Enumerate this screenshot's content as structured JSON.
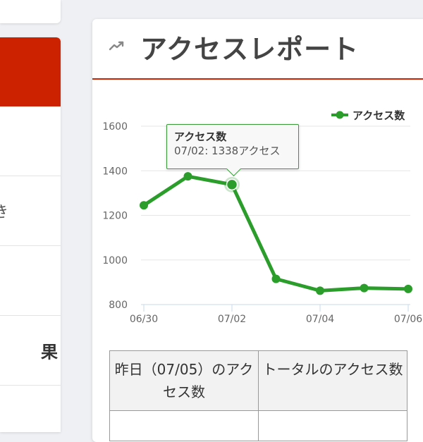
{
  "left_menu": {
    "items": [
      {
        "label": ""
      },
      {
        "label": "",
        "glyph": "き"
      },
      {
        "label": ""
      },
      {
        "label": "果"
      },
      {
        "label": ""
      }
    ]
  },
  "report": {
    "title": "アクセスレポート",
    "icon": "line-chart-icon"
  },
  "tooltip": {
    "title": "アクセス数",
    "body": "07/02: 1338アクセス"
  },
  "chart_data": {
    "type": "line",
    "x": [
      "06/30",
      "07/01",
      "07/02",
      "07/03",
      "07/04",
      "07/05",
      "07/06"
    ],
    "x_tick_labels": [
      "06/30",
      "07/02",
      "07/04",
      "07/06"
    ],
    "series": [
      {
        "name": "アクセス数",
        "values": [
          1245,
          1375,
          1338,
          915,
          862,
          874,
          870
        ],
        "color": "#2a9d2a"
      }
    ],
    "ylim": [
      800,
      1600
    ],
    "y_ticks": [
      "800",
      "1000",
      "1200",
      "1400",
      "1600"
    ],
    "grid": true,
    "legend": "top-right",
    "highlighted_point": "07/02"
  },
  "table": {
    "headers": [
      "昨日（07/05）のアクセス数",
      "トータルのアクセス数"
    ]
  }
}
